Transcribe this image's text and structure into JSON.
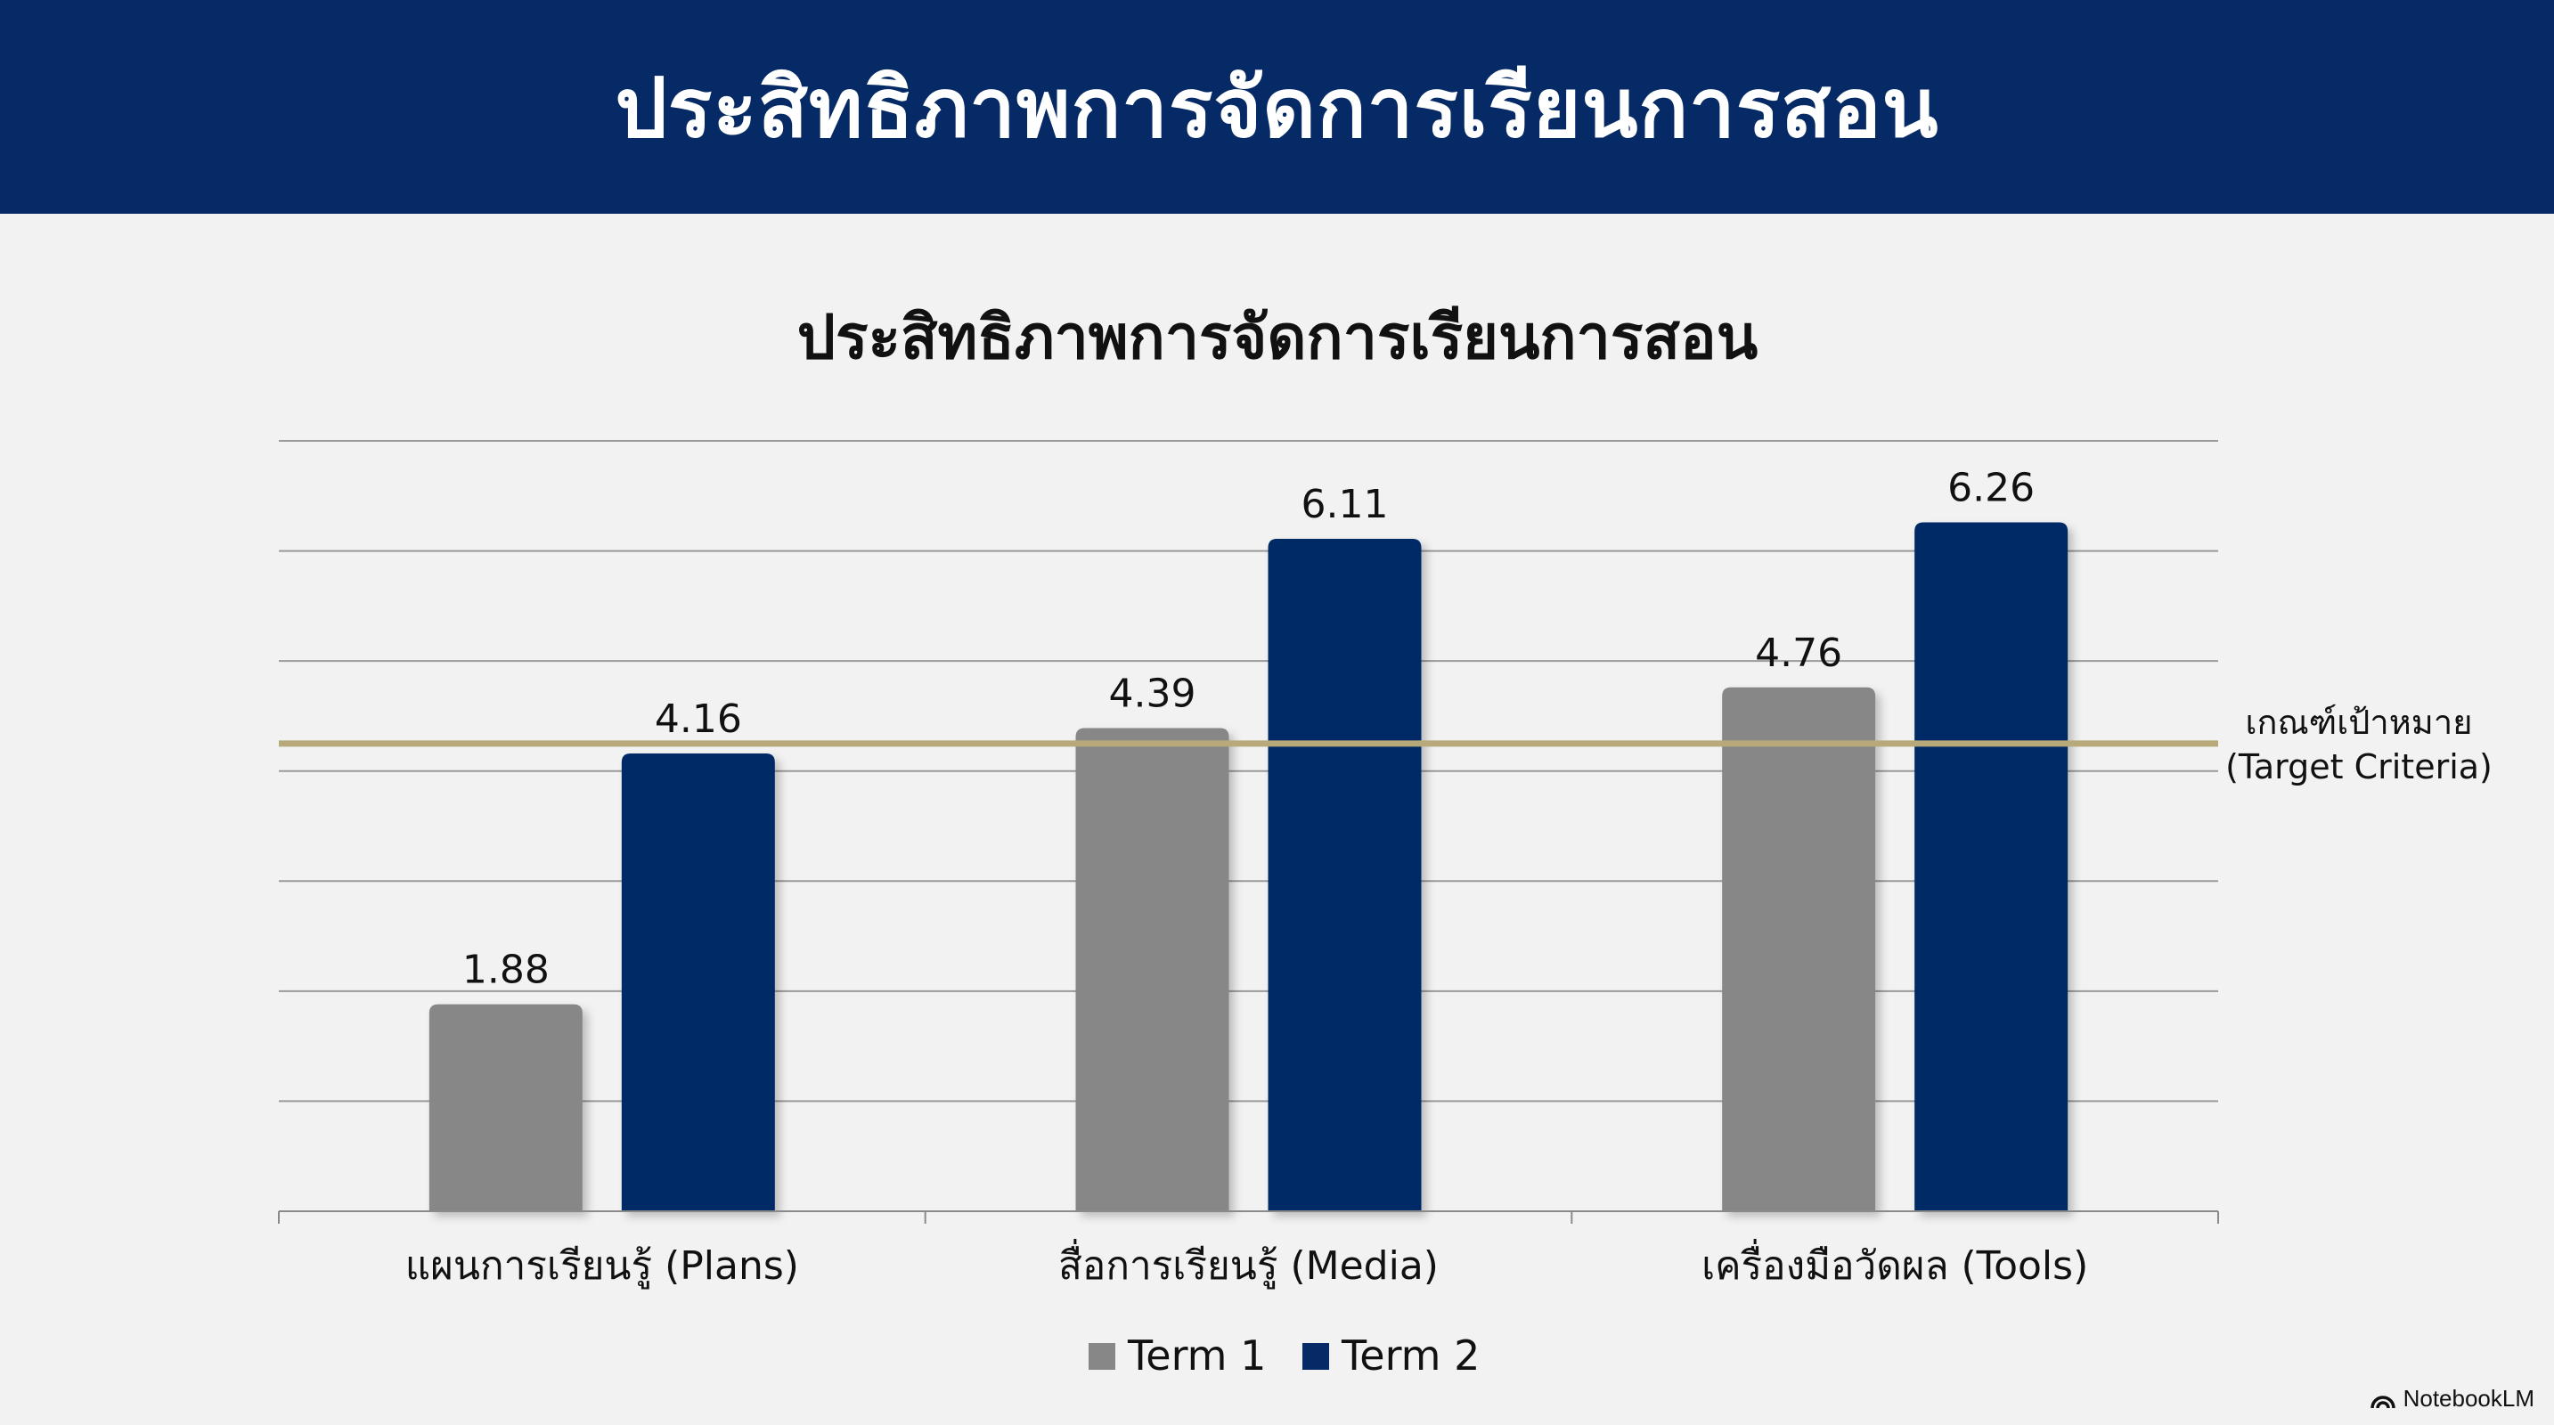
{
  "header": {
    "title": "ประสิทธิภาพการจัดการเรียนการสอน"
  },
  "chart_data": {
    "type": "bar",
    "title": "ประสิทธิภาพการจัดการเรียนการสอน",
    "categories": [
      "แผนการเรียนรู้ (Plans)",
      "สื่อการเรียนรู้ (Media)",
      "เครื่องมือวัดผล (Tools)"
    ],
    "series": [
      {
        "name": "Term 1",
        "values": [
          1.88,
          4.39,
          4.76
        ],
        "color": "#878787"
      },
      {
        "name": "Term 2",
        "values": [
          4.16,
          6.11,
          6.26
        ],
        "color": "#062a66"
      }
    ],
    "value_labels": [
      [
        "1.88",
        "4.39",
        "4.76"
      ],
      [
        "4.16",
        "6.11",
        "6.26"
      ]
    ],
    "ylim": [
      0,
      7
    ],
    "gridlines": true,
    "target_line": {
      "value": 4.25,
      "color": "#b8a97a",
      "label_line1": "เกณฑ์เป้าหมาย",
      "label_line2": "(Target Criteria)"
    },
    "legend": {
      "position": "bottom"
    }
  },
  "branding": {
    "label": "NotebookLM"
  }
}
